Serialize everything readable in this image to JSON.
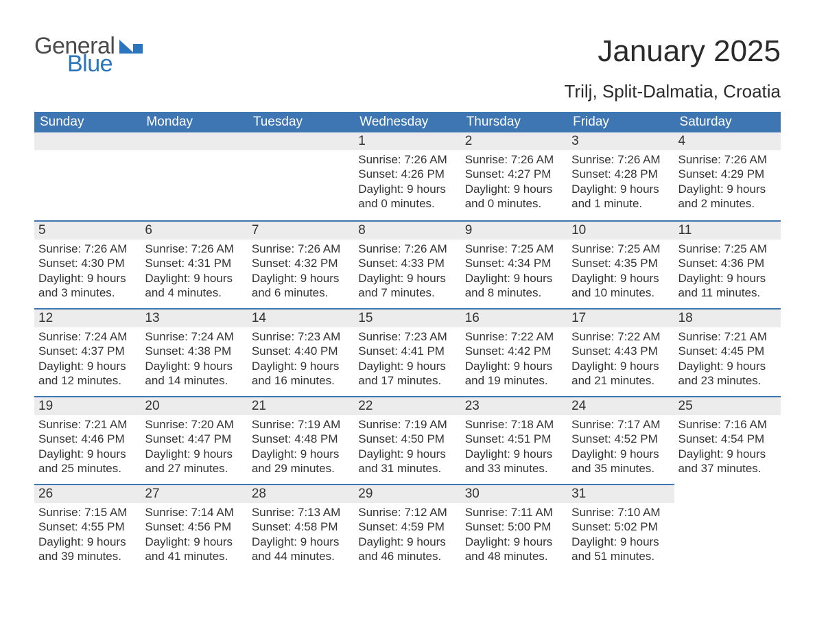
{
  "brand": {
    "general": "General",
    "blue": "Blue",
    "logo_color": "#2a75bb"
  },
  "title": "January 2025",
  "location": "Trilj, Split-Dalmatia, Croatia",
  "colors": {
    "header_bg": "#3d76b3",
    "header_text": "#ffffff",
    "daynum_bg": "#ececec",
    "body_text": "#333333",
    "rule": "#3d76b3"
  },
  "days": [
    "Sunday",
    "Monday",
    "Tuesday",
    "Wednesday",
    "Thursday",
    "Friday",
    "Saturday"
  ],
  "weeks": [
    [
      null,
      null,
      null,
      {
        "n": "1",
        "sunrise": "7:26 AM",
        "sunset": "4:26 PM",
        "daylight": "9 hours and 0 minutes."
      },
      {
        "n": "2",
        "sunrise": "7:26 AM",
        "sunset": "4:27 PM",
        "daylight": "9 hours and 0 minutes."
      },
      {
        "n": "3",
        "sunrise": "7:26 AM",
        "sunset": "4:28 PM",
        "daylight": "9 hours and 1 minute."
      },
      {
        "n": "4",
        "sunrise": "7:26 AM",
        "sunset": "4:29 PM",
        "daylight": "9 hours and 2 minutes."
      }
    ],
    [
      {
        "n": "5",
        "sunrise": "7:26 AM",
        "sunset": "4:30 PM",
        "daylight": "9 hours and 3 minutes."
      },
      {
        "n": "6",
        "sunrise": "7:26 AM",
        "sunset": "4:31 PM",
        "daylight": "9 hours and 4 minutes."
      },
      {
        "n": "7",
        "sunrise": "7:26 AM",
        "sunset": "4:32 PM",
        "daylight": "9 hours and 6 minutes."
      },
      {
        "n": "8",
        "sunrise": "7:26 AM",
        "sunset": "4:33 PM",
        "daylight": "9 hours and 7 minutes."
      },
      {
        "n": "9",
        "sunrise": "7:25 AM",
        "sunset": "4:34 PM",
        "daylight": "9 hours and 8 minutes."
      },
      {
        "n": "10",
        "sunrise": "7:25 AM",
        "sunset": "4:35 PM",
        "daylight": "9 hours and 10 minutes."
      },
      {
        "n": "11",
        "sunrise": "7:25 AM",
        "sunset": "4:36 PM",
        "daylight": "9 hours and 11 minutes."
      }
    ],
    [
      {
        "n": "12",
        "sunrise": "7:24 AM",
        "sunset": "4:37 PM",
        "daylight": "9 hours and 12 minutes."
      },
      {
        "n": "13",
        "sunrise": "7:24 AM",
        "sunset": "4:38 PM",
        "daylight": "9 hours and 14 minutes."
      },
      {
        "n": "14",
        "sunrise": "7:23 AM",
        "sunset": "4:40 PM",
        "daylight": "9 hours and 16 minutes."
      },
      {
        "n": "15",
        "sunrise": "7:23 AM",
        "sunset": "4:41 PM",
        "daylight": "9 hours and 17 minutes."
      },
      {
        "n": "16",
        "sunrise": "7:22 AM",
        "sunset": "4:42 PM",
        "daylight": "9 hours and 19 minutes."
      },
      {
        "n": "17",
        "sunrise": "7:22 AM",
        "sunset": "4:43 PM",
        "daylight": "9 hours and 21 minutes."
      },
      {
        "n": "18",
        "sunrise": "7:21 AM",
        "sunset": "4:45 PM",
        "daylight": "9 hours and 23 minutes."
      }
    ],
    [
      {
        "n": "19",
        "sunrise": "7:21 AM",
        "sunset": "4:46 PM",
        "daylight": "9 hours and 25 minutes."
      },
      {
        "n": "20",
        "sunrise": "7:20 AM",
        "sunset": "4:47 PM",
        "daylight": "9 hours and 27 minutes."
      },
      {
        "n": "21",
        "sunrise": "7:19 AM",
        "sunset": "4:48 PM",
        "daylight": "9 hours and 29 minutes."
      },
      {
        "n": "22",
        "sunrise": "7:19 AM",
        "sunset": "4:50 PM",
        "daylight": "9 hours and 31 minutes."
      },
      {
        "n": "23",
        "sunrise": "7:18 AM",
        "sunset": "4:51 PM",
        "daylight": "9 hours and 33 minutes."
      },
      {
        "n": "24",
        "sunrise": "7:17 AM",
        "sunset": "4:52 PM",
        "daylight": "9 hours and 35 minutes."
      },
      {
        "n": "25",
        "sunrise": "7:16 AM",
        "sunset": "4:54 PM",
        "daylight": "9 hours and 37 minutes."
      }
    ],
    [
      {
        "n": "26",
        "sunrise": "7:15 AM",
        "sunset": "4:55 PM",
        "daylight": "9 hours and 39 minutes."
      },
      {
        "n": "27",
        "sunrise": "7:14 AM",
        "sunset": "4:56 PM",
        "daylight": "9 hours and 41 minutes."
      },
      {
        "n": "28",
        "sunrise": "7:13 AM",
        "sunset": "4:58 PM",
        "daylight": "9 hours and 44 minutes."
      },
      {
        "n": "29",
        "sunrise": "7:12 AM",
        "sunset": "4:59 PM",
        "daylight": "9 hours and 46 minutes."
      },
      {
        "n": "30",
        "sunrise": "7:11 AM",
        "sunset": "5:00 PM",
        "daylight": "9 hours and 48 minutes."
      },
      {
        "n": "31",
        "sunrise": "7:10 AM",
        "sunset": "5:02 PM",
        "daylight": "9 hours and 51 minutes."
      },
      null
    ]
  ],
  "labels": {
    "sunrise": "Sunrise: ",
    "sunset": "Sunset: ",
    "daylight": "Daylight: "
  }
}
